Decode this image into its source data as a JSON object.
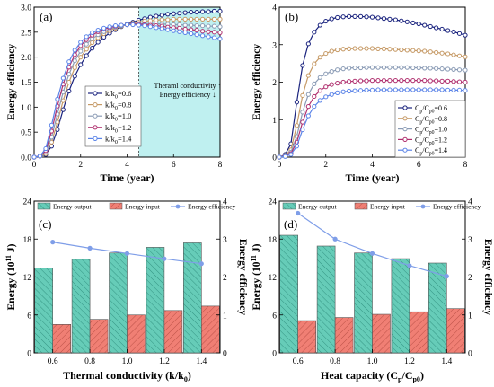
{
  "chart_data": [
    {
      "id": "a",
      "type": "line",
      "panel_label": "(a)",
      "xlabel": "Time (year)",
      "ylabel": "Energy efficiency",
      "xlim": [
        0,
        8
      ],
      "ylim": [
        0,
        3.0
      ],
      "x_ticks": [
        "0",
        "2",
        "4",
        "6",
        "8"
      ],
      "y_ticks": [
        "0.0",
        "0.5",
        "1.0",
        "1.5",
        "2.0",
        "2.5",
        "3.0"
      ],
      "x": [
        0,
        0.25,
        0.5,
        0.75,
        1.0,
        1.25,
        1.5,
        1.75,
        2.0,
        2.25,
        2.5,
        2.75,
        3.0,
        3.25,
        3.5,
        3.75,
        4.0,
        4.25,
        4.5,
        4.75,
        5.0,
        5.25,
        5.5,
        5.75,
        6.0,
        6.25,
        6.5,
        6.75,
        7.0,
        7.25,
        7.5,
        7.75,
        8.0
      ],
      "series": [
        {
          "name": "k/k0=0.6",
          "color": "#1a237e",
          "values": [
            0,
            0.02,
            0.05,
            0.22,
            0.55,
            0.95,
            1.32,
            1.62,
            1.85,
            2.03,
            2.18,
            2.3,
            2.4,
            2.48,
            2.55,
            2.61,
            2.66,
            2.7,
            2.74,
            2.77,
            2.8,
            2.82,
            2.84,
            2.86,
            2.87,
            2.88,
            2.89,
            2.9,
            2.9,
            2.91,
            2.91,
            2.92,
            2.92
          ]
        },
        {
          "name": "k/k0=0.8",
          "color": "#c69a66",
          "values": [
            0,
            0.02,
            0.07,
            0.3,
            0.7,
            1.13,
            1.5,
            1.79,
            2.0,
            2.16,
            2.29,
            2.39,
            2.47,
            2.53,
            2.58,
            2.62,
            2.65,
            2.68,
            2.7,
            2.72,
            2.73,
            2.74,
            2.75,
            2.75,
            2.76,
            2.76,
            2.76,
            2.76,
            2.76,
            2.76,
            2.76,
            2.76,
            2.76
          ]
        },
        {
          "name": "k/k0=1.0",
          "color": "#8a9bb5",
          "values": [
            0,
            0.02,
            0.1,
            0.4,
            0.86,
            1.3,
            1.66,
            1.93,
            2.12,
            2.26,
            2.37,
            2.45,
            2.51,
            2.56,
            2.6,
            2.63,
            2.65,
            2.66,
            2.67,
            2.67,
            2.67,
            2.67,
            2.66,
            2.66,
            2.65,
            2.65,
            2.64,
            2.64,
            2.63,
            2.63,
            2.62,
            2.62,
            2.61
          ]
        },
        {
          "name": "k/k0=1.2",
          "color": "#b0306f",
          "values": [
            0,
            0.02,
            0.13,
            0.52,
            1.02,
            1.46,
            1.8,
            2.05,
            2.23,
            2.35,
            2.44,
            2.51,
            2.56,
            2.59,
            2.62,
            2.64,
            2.65,
            2.66,
            2.66,
            2.65,
            2.64,
            2.63,
            2.62,
            2.6,
            2.59,
            2.58,
            2.56,
            2.55,
            2.54,
            2.52,
            2.51,
            2.5,
            2.49
          ]
        },
        {
          "name": "k/k0=1.4",
          "color": "#5b84e8",
          "values": [
            0,
            0.02,
            0.17,
            0.64,
            1.16,
            1.58,
            1.91,
            2.14,
            2.3,
            2.41,
            2.49,
            2.54,
            2.58,
            2.61,
            2.63,
            2.64,
            2.65,
            2.65,
            2.64,
            2.63,
            2.61,
            2.59,
            2.57,
            2.55,
            2.53,
            2.51,
            2.49,
            2.47,
            2.45,
            2.43,
            2.41,
            2.39,
            2.37
          ]
        }
      ],
      "legend_placement": "middle",
      "shaded_region_x": [
        4.5,
        8
      ],
      "annotation": [
        "Theraml conductivity ↑",
        "Energy efficiency ↓"
      ]
    },
    {
      "id": "b",
      "type": "line",
      "panel_label": "(b)",
      "xlabel": "Time (year)",
      "ylabel": "Energy efficiency",
      "xlim": [
        0,
        8
      ],
      "ylim": [
        0,
        4.5
      ],
      "x_ticks": [
        "0",
        "2",
        "4",
        "6",
        "8"
      ],
      "y_ticks": [
        "0",
        "1",
        "2",
        "3",
        "4"
      ],
      "x": [
        0,
        0.25,
        0.5,
        0.75,
        1.0,
        1.25,
        1.5,
        1.75,
        2.0,
        2.25,
        2.5,
        2.75,
        3.0,
        3.25,
        3.5,
        3.75,
        4.0,
        4.25,
        4.5,
        4.75,
        5.0,
        5.25,
        5.5,
        5.75,
        6.0,
        6.25,
        6.5,
        6.75,
        7.0,
        7.25,
        7.5,
        7.75,
        8.0
      ],
      "series": [
        {
          "name": "Cp/Cp0=0.6",
          "color": "#1a237e",
          "values": [
            0,
            0.08,
            0.4,
            1.65,
            2.75,
            3.4,
            3.75,
            3.96,
            4.08,
            4.15,
            4.19,
            4.21,
            4.22,
            4.22,
            4.22,
            4.21,
            4.2,
            4.18,
            4.16,
            4.14,
            4.12,
            4.09,
            4.06,
            4.03,
            4.0,
            3.96,
            3.92,
            3.88,
            3.84,
            3.8,
            3.76,
            3.71,
            3.66
          ]
        },
        {
          "name": "Cp/Cp0=0.8",
          "color": "#c69a66",
          "values": [
            0,
            0.05,
            0.22,
            0.95,
            1.85,
            2.45,
            2.8,
            3.0,
            3.11,
            3.18,
            3.22,
            3.24,
            3.25,
            3.26,
            3.26,
            3.26,
            3.26,
            3.25,
            3.25,
            3.24,
            3.23,
            3.22,
            3.21,
            3.2,
            3.19,
            3.18,
            3.16,
            3.14,
            3.12,
            3.1,
            3.07,
            3.04,
            3.01
          ]
        },
        {
          "name": "Cp/Cp0=1.0",
          "color": "#8a9bb5",
          "values": [
            0,
            0.04,
            0.15,
            0.62,
            1.35,
            1.88,
            2.2,
            2.39,
            2.5,
            2.57,
            2.62,
            2.65,
            2.67,
            2.68,
            2.68,
            2.69,
            2.69,
            2.69,
            2.69,
            2.69,
            2.69,
            2.69,
            2.69,
            2.68,
            2.68,
            2.67,
            2.67,
            2.66,
            2.65,
            2.64,
            2.63,
            2.62,
            2.61
          ]
        },
        {
          "name": "Cp/Cp0=1.2",
          "color": "#b0306f",
          "values": [
            0,
            0.03,
            0.11,
            0.45,
            1.05,
            1.52,
            1.82,
            2.0,
            2.11,
            2.18,
            2.22,
            2.25,
            2.27,
            2.28,
            2.29,
            2.29,
            2.3,
            2.3,
            2.3,
            2.3,
            2.3,
            2.3,
            2.3,
            2.3,
            2.3,
            2.3,
            2.29,
            2.29,
            2.28,
            2.28,
            2.27,
            2.26,
            2.25
          ]
        },
        {
          "name": "Cp/Cp0=1.4",
          "color": "#5b84e8",
          "values": [
            0,
            0.02,
            0.08,
            0.33,
            0.82,
            1.24,
            1.52,
            1.7,
            1.81,
            1.88,
            1.93,
            1.96,
            1.98,
            1.99,
            2.0,
            2.01,
            2.01,
            2.02,
            2.02,
            2.02,
            2.02,
            2.02,
            2.02,
            2.02,
            2.02,
            2.02,
            2.02,
            2.02,
            2.02,
            2.01,
            2.01,
            2.01,
            2.0
          ]
        }
      ],
      "legend_placement": "bottom-right"
    },
    {
      "id": "c",
      "type": "bar",
      "panel_label": "(c)",
      "xlabel": "Thermal conductivity (k/k0)",
      "ylabel_left": "Energy (10^11 J)",
      "ylabel_right": "Energy efficiency",
      "categories": [
        "0.6",
        "0.8",
        "1.0",
        "1.2",
        "1.4"
      ],
      "ylim_left": [
        0,
        24
      ],
      "ylim_right": [
        0,
        4
      ],
      "y_ticks_left": [
        "0",
        "6",
        "12",
        "18",
        "24"
      ],
      "y_ticks_right": [
        "0",
        "1",
        "2",
        "3",
        "4"
      ],
      "series": [
        {
          "name": "Energy output",
          "kind": "bar",
          "axis": "left",
          "color": "#66ccb8",
          "values": [
            13.4,
            14.8,
            15.8,
            16.7,
            17.4
          ]
        },
        {
          "name": "Energy input",
          "kind": "bar",
          "axis": "left",
          "color": "#f07f74",
          "values": [
            4.5,
            5.3,
            6.0,
            6.7,
            7.4
          ]
        },
        {
          "name": "Energy efficiency",
          "kind": "line",
          "axis": "right",
          "color": "#7f9ee8",
          "values": [
            2.92,
            2.76,
            2.62,
            2.48,
            2.35
          ]
        }
      ],
      "legend_placement": "top"
    },
    {
      "id": "d",
      "type": "bar",
      "panel_label": "(d)",
      "xlabel": "Heat capacity (Cp/Cp0)",
      "ylabel_left": "Energy (10^11 J)",
      "ylabel_right": "Energy efficiency",
      "categories": [
        "0.6",
        "0.8",
        "1.0",
        "1.2",
        "1.4"
      ],
      "ylim_left": [
        0,
        24
      ],
      "ylim_right": [
        0,
        4
      ],
      "y_ticks_left": [
        "0",
        "6",
        "12",
        "18",
        "24"
      ],
      "y_ticks_right": [
        "0",
        "1",
        "2",
        "3",
        "4"
      ],
      "series": [
        {
          "name": "Energy output",
          "kind": "bar",
          "axis": "left",
          "color": "#66ccb8",
          "values": [
            18.6,
            16.9,
            15.8,
            14.9,
            14.2
          ]
        },
        {
          "name": "Energy input",
          "kind": "bar",
          "axis": "left",
          "color": "#f07f74",
          "values": [
            5.1,
            5.6,
            6.1,
            6.5,
            7.0
          ]
        },
        {
          "name": "Energy efficiency",
          "kind": "line",
          "axis": "right",
          "color": "#7f9ee8",
          "values": [
            3.68,
            3.0,
            2.62,
            2.3,
            2.02
          ]
        }
      ],
      "legend_placement": "top"
    }
  ]
}
